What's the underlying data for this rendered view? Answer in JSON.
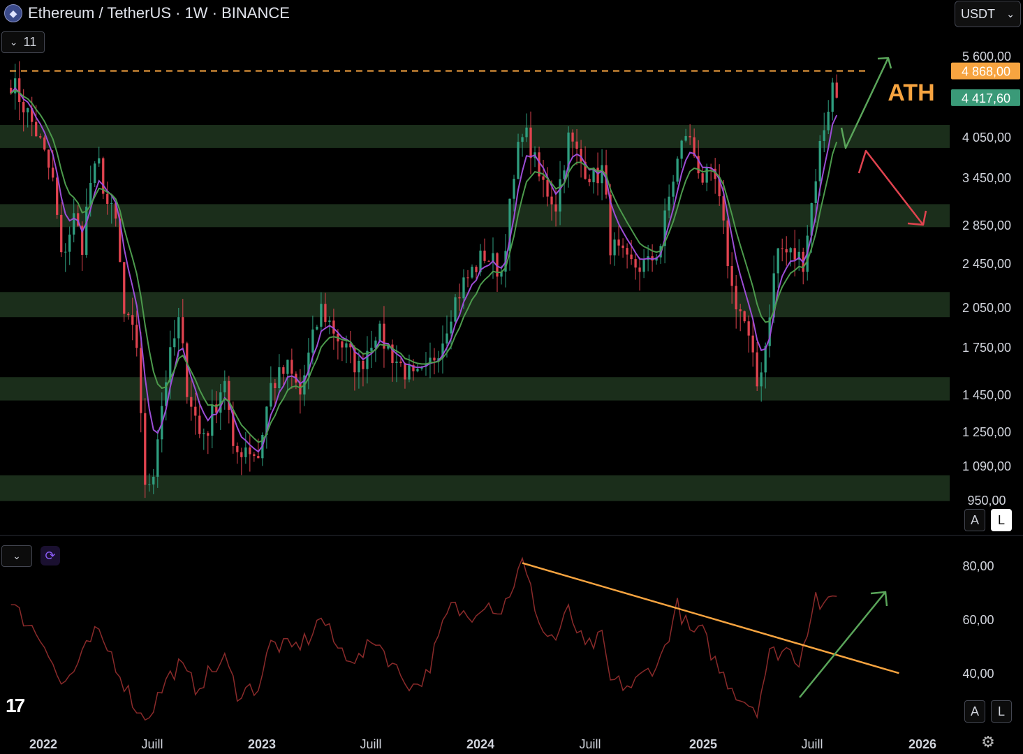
{
  "header": {
    "symbol_title": "Ethereum / TetherUS · 1W · BINANCE",
    "indicator_count": "11",
    "currency_selector": "USDT"
  },
  "price_axis": {
    "ticks": [
      "5 600,00",
      "4 050,00",
      "3 450,00",
      "2 850,00",
      "2 450,00",
      "2 050,00",
      "1 750,00",
      "1 450,00",
      "1 250,00",
      "1 090,00",
      "950,00"
    ],
    "scale": "log",
    "badge_ath": "4 868,00",
    "badge_last": "4 417,60",
    "badge_ath_color": "#f7a440",
    "badge_last_color": "#3a9a78"
  },
  "annotations": {
    "ath_label": "ATH",
    "ath_color": "#f7a440",
    "up_arrow_color": "#5aa55a",
    "down_arrow_color": "#e0434f"
  },
  "rsi_axis": {
    "ticks": [
      "80,00",
      "60,00",
      "40,00"
    ]
  },
  "time_axis": {
    "labels": [
      "2022",
      "Juill",
      "2023",
      "Juill",
      "2024",
      "Juill",
      "2025",
      "Juill",
      "2026"
    ]
  },
  "scale_buttons": {
    "auto": "A",
    "log": "L"
  },
  "chart_data": [
    {
      "type": "candlestick",
      "title": "Ethereum / TetherUS · 1W · BINANCE",
      "y_scale": "log",
      "ylim": [
        900,
        6300
      ],
      "x_range": [
        "2021-11-08",
        "2025-12-31"
      ],
      "ath": 4868,
      "last": 4417.6,
      "support_resistance_zones": [
        [
          3680,
          4000
        ],
        [
          2760,
          3000
        ],
        [
          1990,
          2180
        ],
        [
          1470,
          1600
        ],
        [
          1020,
          1120
        ]
      ],
      "anchors": [
        [
          "2021-11-08",
          4700
        ],
        [
          "2021-11-29",
          4300
        ],
        [
          "2021-12-20",
          3900
        ],
        [
          "2022-01-17",
          3250
        ],
        [
          "2022-01-31",
          2450
        ],
        [
          "2022-02-21",
          2850
        ],
        [
          "2022-03-07",
          2600
        ],
        [
          "2022-03-21",
          3250
        ],
        [
          "2022-04-04",
          3450
        ],
        [
          "2022-04-18",
          3000
        ],
        [
          "2022-05-02",
          2800
        ],
        [
          "2022-05-16",
          2000
        ],
        [
          "2022-06-06",
          1800
        ],
        [
          "2022-06-20",
          1050
        ],
        [
          "2022-07-04",
          1150
        ],
        [
          "2022-07-25",
          1600
        ],
        [
          "2022-08-15",
          1950
        ],
        [
          "2022-08-29",
          1550
        ],
        [
          "2022-09-19",
          1300
        ],
        [
          "2022-10-03",
          1330
        ],
        [
          "2022-10-31",
          1600
        ],
        [
          "2022-11-14",
          1200
        ],
        [
          "2022-12-05",
          1250
        ],
        [
          "2022-12-26",
          1200
        ],
        [
          "2023-01-16",
          1550
        ],
        [
          "2023-02-13",
          1650
        ],
        [
          "2023-03-06",
          1500
        ],
        [
          "2023-04-10",
          2050
        ],
        [
          "2023-05-15",
          1800
        ],
        [
          "2023-06-12",
          1650
        ],
        [
          "2023-07-10",
          1900
        ],
        [
          "2023-08-14",
          1700
        ],
        [
          "2023-09-11",
          1580
        ],
        [
          "2023-10-02",
          1620
        ],
        [
          "2023-10-30",
          1850
        ],
        [
          "2023-11-13",
          2050
        ],
        [
          "2023-12-04",
          2250
        ],
        [
          "2024-01-08",
          2500
        ],
        [
          "2024-02-05",
          2350
        ],
        [
          "2024-02-26",
          3250
        ],
        [
          "2024-03-11",
          4000
        ],
        [
          "2024-04-08",
          3300
        ],
        [
          "2024-05-06",
          3000
        ],
        [
          "2024-05-27",
          3800
        ],
        [
          "2024-06-17",
          3500
        ],
        [
          "2024-07-08",
          3300
        ],
        [
          "2024-07-22",
          3400
        ],
        [
          "2024-08-05",
          2600
        ],
        [
          "2024-09-02",
          2400
        ],
        [
          "2024-10-07",
          2400
        ],
        [
          "2024-10-28",
          2600
        ],
        [
          "2024-11-18",
          3300
        ],
        [
          "2024-12-09",
          3900
        ],
        [
          "2025-01-06",
          3300
        ],
        [
          "2025-01-27",
          3250
        ],
        [
          "2025-02-24",
          2200
        ],
        [
          "2025-03-17",
          1950
        ],
        [
          "2025-04-07",
          1550
        ],
        [
          "2025-04-21",
          1800
        ],
        [
          "2025-05-12",
          2550
        ],
        [
          "2025-06-02",
          2500
        ],
        [
          "2025-06-23",
          2450
        ],
        [
          "2025-07-07",
          3000
        ],
        [
          "2025-07-21",
          3700
        ],
        [
          "2025-08-11",
          4600
        ],
        [
          "2025-08-18",
          4417.6
        ]
      ],
      "moving_averages": [
        {
          "color": "#9c4dd6",
          "length": "short"
        },
        {
          "color": "#4c9a4c",
          "length": "long"
        }
      ]
    },
    {
      "type": "line",
      "indicator": "RSI",
      "ylim": [
        22,
        94
      ],
      "color": "#8a2a2a",
      "trendline": {
        "from": [
          "2024-03-11",
          84
        ],
        "to": [
          "2025-11-30",
          43
        ],
        "color": "#f7a440"
      },
      "anchors": [
        [
          "2021-11-08",
          68
        ],
        [
          "2021-12-06",
          62
        ],
        [
          "2022-01-10",
          52
        ],
        [
          "2022-01-31",
          38
        ],
        [
          "2022-02-28",
          46
        ],
        [
          "2022-03-28",
          58
        ],
        [
          "2022-04-25",
          50
        ],
        [
          "2022-05-23",
          36
        ],
        [
          "2022-06-13",
          27
        ],
        [
          "2022-06-27",
          28
        ],
        [
          "2022-07-25",
          40
        ],
        [
          "2022-08-15",
          46
        ],
        [
          "2022-09-12",
          38
        ],
        [
          "2022-10-31",
          48
        ],
        [
          "2022-11-21",
          36
        ],
        [
          "2022-12-26",
          38
        ],
        [
          "2023-01-16",
          54
        ],
        [
          "2023-02-20",
          52
        ],
        [
          "2023-03-20",
          56
        ],
        [
          "2023-04-10",
          64
        ],
        [
          "2023-05-08",
          52
        ],
        [
          "2023-06-12",
          48
        ],
        [
          "2023-07-10",
          56
        ],
        [
          "2023-08-14",
          44
        ],
        [
          "2023-09-11",
          38
        ],
        [
          "2023-10-02",
          42
        ],
        [
          "2023-10-30",
          60
        ],
        [
          "2023-11-13",
          68
        ],
        [
          "2023-12-11",
          64
        ],
        [
          "2024-01-08",
          70
        ],
        [
          "2024-02-05",
          66
        ],
        [
          "2024-03-11",
          84
        ],
        [
          "2024-04-15",
          58
        ],
        [
          "2024-05-06",
          56
        ],
        [
          "2024-05-27",
          66
        ],
        [
          "2024-06-24",
          52
        ],
        [
          "2024-07-22",
          56
        ],
        [
          "2024-08-05",
          40
        ],
        [
          "2024-09-09",
          38
        ],
        [
          "2024-10-07",
          44
        ],
        [
          "2024-10-28",
          48
        ],
        [
          "2024-11-25",
          68
        ],
        [
          "2024-12-16",
          58
        ],
        [
          "2025-01-06",
          58
        ],
        [
          "2025-02-03",
          44
        ],
        [
          "2025-03-10",
          34
        ],
        [
          "2025-04-07",
          30
        ],
        [
          "2025-04-28",
          50
        ],
        [
          "2025-05-26",
          52
        ],
        [
          "2025-06-16",
          48
        ],
        [
          "2025-07-14",
          72
        ],
        [
          "2025-07-28",
          66
        ],
        [
          "2025-08-18",
          74
        ]
      ]
    }
  ]
}
